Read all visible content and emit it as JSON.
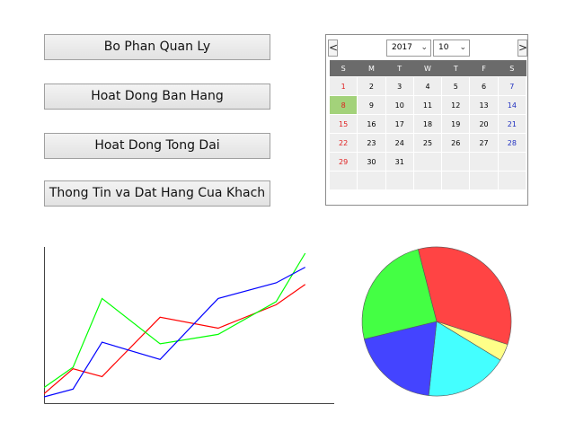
{
  "menu": {
    "items": [
      {
        "label": "Bo Phan Quan Ly"
      },
      {
        "label": "Hoat Dong Ban Hang"
      },
      {
        "label": "Hoat Dong Tong Dai"
      },
      {
        "label": "Thong Tin va Dat Hang Cua Khach"
      }
    ]
  },
  "calendar": {
    "prev_icon": "chevron-left-icon",
    "next_icon": "chevron-right-icon",
    "prev_label": "<",
    "next_label": ">",
    "year": "2017",
    "month": "10",
    "weekdays": [
      "S",
      "M",
      "T",
      "W",
      "T",
      "F",
      "S"
    ],
    "selected_day": "8",
    "weeks": [
      [
        "1",
        "2",
        "3",
        "4",
        "5",
        "6",
        "7"
      ],
      [
        "8",
        "9",
        "10",
        "11",
        "12",
        "13",
        "14"
      ],
      [
        "15",
        "16",
        "17",
        "18",
        "19",
        "20",
        "21"
      ],
      [
        "22",
        "23",
        "24",
        "25",
        "26",
        "27",
        "28"
      ],
      [
        "29",
        "30",
        "31",
        "",
        "",
        "",
        ""
      ],
      [
        "",
        "",
        "",
        "",
        "",
        "",
        ""
      ]
    ],
    "colors": {
      "sunday": "#e02020",
      "saturday": "#2030c0",
      "selected": "#a3d27a",
      "header": "#6b6b6b"
    }
  },
  "chart_data": [
    {
      "type": "line",
      "title": "",
      "xlabel": "",
      "ylabel": "",
      "x": [
        0,
        1,
        2,
        3,
        4,
        5,
        6,
        7,
        8,
        9
      ],
      "xlim": [
        0,
        10
      ],
      "ylim": [
        0,
        10
      ],
      "grid": false,
      "series": [
        {
          "color": "#ff0000",
          "values": [
            0.6,
            2.2,
            1.7,
            null,
            5.5,
            null,
            4.8,
            null,
            6.3,
            7.6
          ]
        },
        {
          "color": "#00ff00",
          "values": [
            1.0,
            2.3,
            6.7,
            null,
            3.8,
            null,
            4.4,
            null,
            6.5,
            9.6
          ]
        },
        {
          "color": "#0000ff",
          "values": [
            0.4,
            0.9,
            3.9,
            null,
            2.8,
            null,
            6.7,
            null,
            7.7,
            8.7
          ]
        }
      ]
    },
    {
      "type": "pie",
      "title": "",
      "slices": [
        {
          "color": "#ff4444",
          "value": 34
        },
        {
          "color": "#ffff88",
          "value": 3.7
        },
        {
          "color": "#44ffff",
          "value": 18
        },
        {
          "color": "#4444ff",
          "value": 19.5
        },
        {
          "color": "#44ff44",
          "value": 24.8
        }
      ]
    }
  ]
}
